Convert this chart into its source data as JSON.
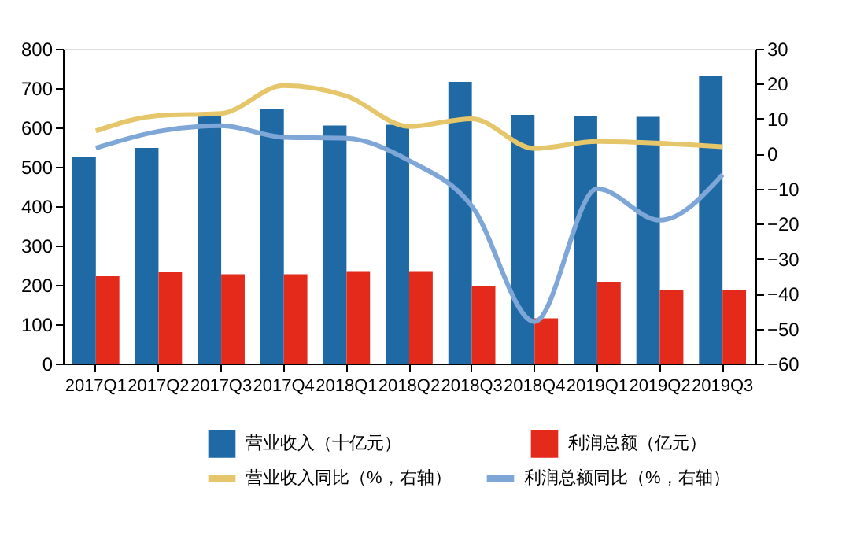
{
  "chart_data": {
    "type": "bar",
    "categories": [
      "2017Q1",
      "2017Q2",
      "2017Q3",
      "2017Q4",
      "2018Q1",
      "2018Q2",
      "2018Q3",
      "2018Q4",
      "2019Q1",
      "2019Q2",
      "2019Q3"
    ],
    "series": [
      {
        "name": "营业收入（十亿元）",
        "color": "#1f6aa5",
        "values": [
          525,
          548,
          632,
          648,
          605,
          607,
          716,
          632,
          630,
          627,
          732
        ]
      },
      {
        "name": "利润总额（亿元）",
        "color": "#e32a1b",
        "values": [
          222,
          232,
          227,
          227,
          233,
          233,
          198,
          115,
          208,
          188,
          186
        ]
      },
      {
        "name": "营业收入同比（%，右轴）",
        "type": "line",
        "axis": "y2",
        "color": "#e6c66a",
        "values": [
          6.5,
          10.9,
          11.5,
          19.5,
          16.5,
          7.8,
          10,
          1.5,
          3.5,
          3,
          2
        ]
      },
      {
        "name": "利润总额同比（%，右轴）",
        "type": "line",
        "axis": "y2",
        "color": "#7ea6d6",
        "values": [
          1.6,
          6.4,
          8,
          4.7,
          4.4,
          -2,
          -15,
          -48,
          -10,
          -19,
          -6
        ]
      }
    ],
    "ylim": [
      0,
      800
    ],
    "yticks": [
      0,
      100,
      200,
      300,
      400,
      500,
      600,
      700,
      800
    ],
    "y2lim": [
      -60,
      30
    ],
    "y2ticks": [
      -60,
      -50,
      -40,
      -30,
      -20,
      -10,
      0,
      10,
      20,
      30
    ],
    "legend": "bottom",
    "grid": false,
    "line_style": "solid",
    "marker": "none"
  }
}
